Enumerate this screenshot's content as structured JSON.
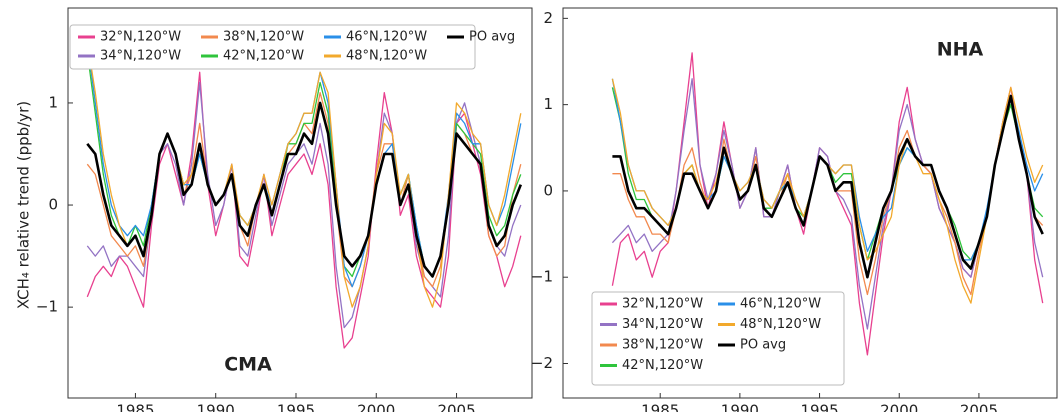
{
  "y_label": "XCH₄ relative trend (ppb/yr)",
  "chart_data": [
    {
      "type": "line",
      "annotation": "CMA",
      "x": [
        1982,
        1982.5,
        1983,
        1983.5,
        1984,
        1984.5,
        1985,
        1985.5,
        1986,
        1986.5,
        1987,
        1987.5,
        1988,
        1988.5,
        1989,
        1989.5,
        1990,
        1990.5,
        1991,
        1991.5,
        1992,
        1992.5,
        1993,
        1993.5,
        1994,
        1994.5,
        1995,
        1995.5,
        1996,
        1996.5,
        1997,
        1997.5,
        1998,
        1998.5,
        1999,
        1999.5,
        2000,
        2000.5,
        2001,
        2001.5,
        2002,
        2002.5,
        2003,
        2003.5,
        2004,
        2004.5,
        2005,
        2005.5,
        2006,
        2006.5,
        2007,
        2007.5,
        2008,
        2008.5,
        2009
      ],
      "xlim": [
        1980.8,
        2009.7
      ],
      "xticks": [
        1985,
        1990,
        1995,
        2000,
        2005
      ],
      "ylim": [
        -1.89,
        1.93
      ],
      "yticks": [
        {
          "value": -1,
          "label": "−1"
        },
        0,
        1
      ],
      "legend": "top-left",
      "series": [
        {
          "name": "32°N,120°W",
          "color": "#e8408f",
          "values": [
            -0.9,
            -0.7,
            -0.6,
            -0.7,
            -0.5,
            -0.6,
            -0.8,
            -1.0,
            -0.2,
            0.4,
            0.6,
            0.3,
            0.0,
            0.5,
            1.3,
            0.2,
            -0.3,
            0.0,
            0.4,
            -0.5,
            -0.6,
            -0.2,
            0.3,
            -0.3,
            0.0,
            0.3,
            0.4,
            0.5,
            0.3,
            0.6,
            0.2,
            -0.8,
            -1.4,
            -1.3,
            -0.9,
            -0.5,
            0.4,
            1.1,
            0.7,
            -0.1,
            0.1,
            -0.5,
            -0.8,
            -0.9,
            -1.0,
            -0.5,
            0.8,
            0.9,
            0.6,
            0.3,
            -0.3,
            -0.5,
            -0.8,
            -0.6,
            -0.3
          ]
        },
        {
          "name": "34°N,120°W",
          "color": "#9373c4",
          "values": [
            -0.4,
            -0.5,
            -0.4,
            -0.6,
            -0.5,
            -0.5,
            -0.6,
            -0.7,
            -0.1,
            0.5,
            0.6,
            0.4,
            0.0,
            0.4,
            1.2,
            0.3,
            -0.2,
            0.0,
            0.4,
            -0.4,
            -0.5,
            -0.1,
            0.3,
            -0.2,
            0.1,
            0.4,
            0.5,
            0.6,
            0.4,
            0.8,
            0.4,
            -0.6,
            -1.2,
            -1.1,
            -0.8,
            -0.4,
            0.3,
            0.9,
            0.7,
            0.0,
            0.2,
            -0.4,
            -0.7,
            -0.8,
            -0.9,
            -0.3,
            0.8,
            1.0,
            0.7,
            0.4,
            -0.2,
            -0.4,
            -0.5,
            -0.2,
            0.0
          ]
        },
        {
          "name": "38°N,120°W",
          "color": "#f2894e",
          "values": [
            0.4,
            0.3,
            0.0,
            -0.3,
            -0.4,
            -0.5,
            -0.4,
            -0.6,
            -0.1,
            0.5,
            0.7,
            0.5,
            0.1,
            0.3,
            0.8,
            0.2,
            0.0,
            0.1,
            0.3,
            -0.2,
            -0.4,
            0.0,
            0.2,
            -0.1,
            0.2,
            0.5,
            0.6,
            0.8,
            0.7,
            1.1,
            0.8,
            0.0,
            -0.7,
            -0.8,
            -0.6,
            -0.3,
            0.3,
            0.6,
            0.6,
            0.0,
            0.3,
            -0.3,
            -0.7,
            -0.8,
            -0.6,
            0.0,
            0.8,
            0.7,
            0.5,
            0.4,
            -0.3,
            -0.5,
            -0.4,
            0.1,
            0.4
          ]
        },
        {
          "name": "42°N,120°W",
          "color": "#2fc43c",
          "values": [
            1.5,
            0.9,
            0.3,
            -0.1,
            -0.3,
            -0.4,
            -0.2,
            -0.4,
            0.0,
            0.5,
            0.7,
            0.5,
            0.2,
            0.2,
            0.5,
            0.2,
            0.0,
            0.1,
            0.3,
            -0.1,
            -0.2,
            0.0,
            0.2,
            -0.1,
            0.2,
            0.6,
            0.6,
            0.8,
            0.8,
            1.2,
            0.9,
            0.1,
            -0.6,
            -0.7,
            -0.5,
            -0.3,
            0.2,
            0.5,
            0.5,
            0.1,
            0.3,
            -0.2,
            -0.6,
            -0.7,
            -0.5,
            0.0,
            0.8,
            0.7,
            0.6,
            0.5,
            -0.1,
            -0.3,
            -0.2,
            0.1,
            0.3
          ]
        },
        {
          "name": "46°N,120°W",
          "color": "#2a8fe8",
          "values": [
            1.6,
            1.0,
            0.4,
            0.0,
            -0.2,
            -0.3,
            -0.2,
            -0.3,
            0.0,
            0.5,
            0.7,
            0.5,
            0.2,
            0.2,
            0.5,
            0.2,
            0.0,
            0.1,
            0.3,
            -0.1,
            -0.2,
            0.0,
            0.2,
            0.0,
            0.3,
            0.6,
            0.7,
            0.9,
            0.9,
            1.3,
            1.0,
            0.2,
            -0.6,
            -0.8,
            -0.6,
            -0.3,
            0.2,
            0.5,
            0.6,
            0.1,
            0.3,
            -0.2,
            -0.6,
            -0.7,
            -0.5,
            0.1,
            0.9,
            0.8,
            0.6,
            0.6,
            0.0,
            -0.2,
            0.0,
            0.4,
            0.8
          ]
        },
        {
          "name": "48°N,120°W",
          "color": "#f2a92c",
          "values": [
            1.6,
            1.1,
            0.5,
            0.1,
            -0.2,
            -0.4,
            -0.3,
            -0.5,
            -0.1,
            0.5,
            0.7,
            0.5,
            0.2,
            0.3,
            0.6,
            0.2,
            0.0,
            0.1,
            0.4,
            -0.1,
            -0.2,
            0.0,
            0.3,
            0.0,
            0.3,
            0.6,
            0.7,
            0.9,
            0.9,
            1.3,
            1.1,
            0.2,
            -0.7,
            -1.0,
            -0.8,
            -0.4,
            0.3,
            0.8,
            0.7,
            0.1,
            0.3,
            -0.3,
            -0.8,
            -1.0,
            -0.7,
            0.1,
            1.0,
            0.9,
            0.7,
            0.6,
            0.0,
            -0.2,
            0.1,
            0.5,
            0.9
          ]
        },
        {
          "name": "PO avg",
          "color": "#000000",
          "values": [
            0.6,
            0.5,
            0.1,
            -0.2,
            -0.3,
            -0.4,
            -0.3,
            -0.5,
            -0.1,
            0.5,
            0.7,
            0.5,
            0.1,
            0.2,
            0.6,
            0.2,
            0.0,
            0.1,
            0.3,
            -0.2,
            -0.3,
            0.0,
            0.2,
            -0.1,
            0.2,
            0.5,
            0.5,
            0.7,
            0.6,
            1.0,
            0.7,
            0.0,
            -0.5,
            -0.6,
            -0.5,
            -0.3,
            0.2,
            0.5,
            0.5,
            0.0,
            0.2,
            -0.3,
            -0.6,
            -0.7,
            -0.5,
            0.0,
            0.7,
            0.6,
            0.5,
            0.4,
            -0.2,
            -0.4,
            -0.3,
            0.0,
            0.2
          ]
        }
      ]
    },
    {
      "type": "line",
      "annotation": "NHA",
      "x": [
        1982,
        1982.5,
        1983,
        1983.5,
        1984,
        1984.5,
        1985,
        1985.5,
        1986,
        1986.5,
        1987,
        1987.5,
        1988,
        1988.5,
        1989,
        1989.5,
        1990,
        1990.5,
        1991,
        1991.5,
        1992,
        1992.5,
        1993,
        1993.5,
        1994,
        1994.5,
        1995,
        1995.5,
        1996,
        1996.5,
        1997,
        1997.5,
        1998,
        1998.5,
        1999,
        1999.5,
        2000,
        2000.5,
        2001,
        2001.5,
        2002,
        2002.5,
        2003,
        2003.5,
        2004,
        2004.5,
        2005,
        2005.5,
        2006,
        2006.5,
        2007,
        2007.5,
        2008,
        2008.5,
        2009
      ],
      "xlim": [
        1978.9,
        2009.9
      ],
      "xticks": [
        1985,
        1990,
        1995,
        2000,
        2005
      ],
      "ylim": [
        -2.4,
        2.12
      ],
      "yticks": [
        {
          "value": -2,
          "label": "−2"
        },
        {
          "value": -1,
          "label": "−1"
        },
        0,
        1,
        2
      ],
      "legend": "bottom-left",
      "series": [
        {
          "name": "32°N,120°W",
          "color": "#e8408f",
          "values": [
            -1.1,
            -0.6,
            -0.5,
            -0.8,
            -0.7,
            -1.0,
            -0.7,
            -0.6,
            0.0,
            0.8,
            1.6,
            0.3,
            -0.2,
            0.2,
            0.8,
            0.3,
            -0.2,
            0.0,
            0.5,
            -0.3,
            -0.3,
            0.0,
            0.3,
            -0.2,
            -0.5,
            0.0,
            0.5,
            0.4,
            0.0,
            -0.2,
            -0.4,
            -1.3,
            -1.9,
            -1.2,
            -0.5,
            0.0,
            0.8,
            1.2,
            0.6,
            0.3,
            0.2,
            -0.2,
            -0.4,
            -0.6,
            -0.9,
            -1.0,
            -0.6,
            -0.3,
            0.3,
            0.8,
            1.2,
            0.6,
            0.2,
            -0.8,
            -1.3
          ]
        },
        {
          "name": "34°N,120°W",
          "color": "#9373c4",
          "values": [
            -0.6,
            -0.5,
            -0.4,
            -0.6,
            -0.5,
            -0.7,
            -0.6,
            -0.5,
            0.0,
            0.7,
            1.3,
            0.3,
            -0.1,
            0.2,
            0.7,
            0.3,
            -0.2,
            0.0,
            0.5,
            -0.3,
            -0.3,
            0.0,
            0.3,
            -0.2,
            -0.4,
            0.0,
            0.5,
            0.4,
            0.0,
            -0.1,
            -0.3,
            -1.1,
            -1.6,
            -1.0,
            -0.4,
            0.0,
            0.7,
            1.0,
            0.6,
            0.3,
            0.2,
            -0.2,
            -0.4,
            -0.6,
            -0.9,
            -1.0,
            -0.6,
            -0.3,
            0.3,
            0.8,
            1.1,
            0.6,
            0.2,
            -0.6,
            -1.0
          ]
        },
        {
          "name": "38°N,120°W",
          "color": "#f2894e",
          "values": [
            0.2,
            0.2,
            -0.1,
            -0.3,
            -0.3,
            -0.5,
            -0.5,
            -0.6,
            -0.2,
            0.3,
            0.5,
            0.1,
            -0.2,
            0.0,
            0.6,
            0.2,
            -0.1,
            0.0,
            0.4,
            -0.2,
            -0.3,
            -0.1,
            0.2,
            -0.2,
            -0.4,
            0.0,
            0.4,
            0.3,
            0.0,
            0.0,
            0.0,
            -0.8,
            -1.2,
            -0.8,
            -0.3,
            0.0,
            0.5,
            0.7,
            0.4,
            0.3,
            0.2,
            -0.1,
            -0.3,
            -0.6,
            -1.0,
            -1.2,
            -0.7,
            -0.3,
            0.3,
            0.7,
            1.1,
            0.6,
            0.2,
            -0.3,
            -0.4
          ]
        },
        {
          "name": "42°N,120°W",
          "color": "#2fc43c",
          "values": [
            1.2,
            0.8,
            0.2,
            -0.1,
            -0.1,
            -0.3,
            -0.4,
            -0.5,
            -0.2,
            0.2,
            0.3,
            0.0,
            -0.2,
            0.0,
            0.4,
            0.2,
            -0.1,
            0.0,
            0.3,
            -0.2,
            -0.2,
            0.0,
            0.1,
            -0.2,
            -0.3,
            0.0,
            0.4,
            0.3,
            0.1,
            0.2,
            0.2,
            -0.4,
            -0.8,
            -0.5,
            -0.2,
            0.0,
            0.3,
            0.5,
            0.4,
            0.3,
            0.3,
            0.0,
            -0.2,
            -0.4,
            -0.7,
            -0.8,
            -0.6,
            -0.3,
            0.3,
            0.7,
            1.0,
            0.6,
            0.2,
            -0.2,
            -0.3
          ]
        },
        {
          "name": "46°N,120°W",
          "color": "#2a8fe8",
          "values": [
            1.3,
            0.8,
            0.3,
            0.0,
            0.0,
            -0.2,
            -0.3,
            -0.4,
            -0.2,
            0.2,
            0.2,
            0.0,
            -0.1,
            0.0,
            0.4,
            0.2,
            0.0,
            0.1,
            0.3,
            -0.1,
            -0.2,
            0.0,
            0.1,
            -0.1,
            -0.3,
            0.0,
            0.4,
            0.3,
            0.2,
            0.3,
            0.3,
            -0.3,
            -0.7,
            -0.5,
            -0.3,
            -0.2,
            0.3,
            0.5,
            0.4,
            0.3,
            0.3,
            0.0,
            -0.2,
            -0.5,
            -0.8,
            -0.8,
            -0.6,
            -0.2,
            0.3,
            0.7,
            1.1,
            0.7,
            0.3,
            0.0,
            0.2
          ]
        },
        {
          "name": "48°N,120°W",
          "color": "#f2a92c",
          "values": [
            1.3,
            0.9,
            0.3,
            0.0,
            0.0,
            -0.2,
            -0.3,
            -0.4,
            -0.2,
            0.2,
            0.3,
            0.0,
            -0.1,
            0.1,
            0.5,
            0.2,
            0.0,
            0.1,
            0.3,
            -0.1,
            -0.2,
            0.0,
            0.2,
            -0.1,
            -0.3,
            0.0,
            0.4,
            0.3,
            0.2,
            0.3,
            0.3,
            -0.4,
            -0.8,
            -0.7,
            -0.5,
            -0.3,
            0.3,
            0.6,
            0.4,
            0.2,
            0.2,
            -0.1,
            -0.4,
            -0.8,
            -1.1,
            -1.3,
            -0.8,
            -0.3,
            0.3,
            0.8,
            1.2,
            0.8,
            0.4,
            0.1,
            0.3
          ]
        },
        {
          "name": "PO avg",
          "color": "#000000",
          "values": [
            0.4,
            0.4,
            0.0,
            -0.2,
            -0.2,
            -0.3,
            -0.4,
            -0.5,
            -0.2,
            0.2,
            0.2,
            0.0,
            -0.2,
            0.0,
            0.5,
            0.2,
            -0.1,
            0.0,
            0.3,
            -0.2,
            -0.3,
            -0.1,
            0.1,
            -0.2,
            -0.4,
            0.0,
            0.4,
            0.3,
            0.0,
            0.1,
            0.1,
            -0.6,
            -1.0,
            -0.6,
            -0.2,
            0.0,
            0.4,
            0.6,
            0.4,
            0.3,
            0.3,
            0.0,
            -0.2,
            -0.5,
            -0.8,
            -0.9,
            -0.6,
            -0.3,
            0.3,
            0.7,
            1.1,
            0.6,
            0.2,
            -0.3,
            -0.5
          ]
        }
      ]
    }
  ]
}
